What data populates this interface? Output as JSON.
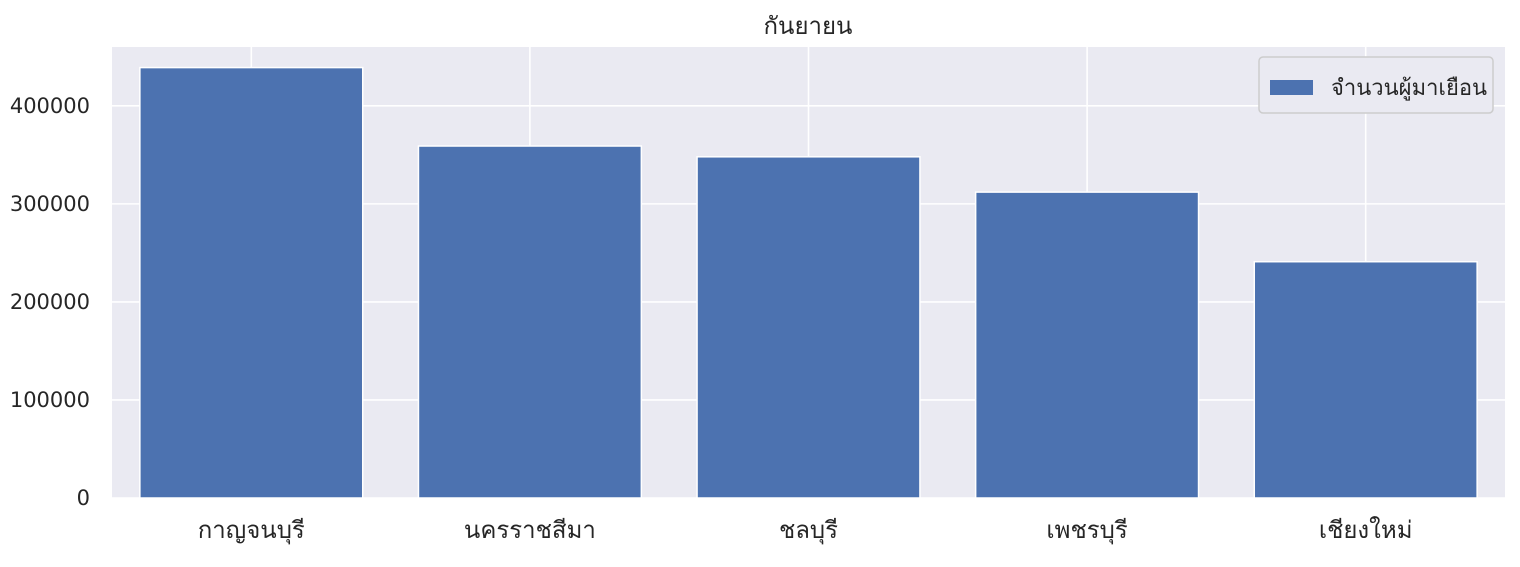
{
  "chart_data": {
    "type": "bar",
    "title": "กันยายน",
    "xlabel": "",
    "ylabel": "",
    "categories": [
      "กาญจนบุรี",
      "นครราชสีมา",
      "ชลบุรี",
      "เพชรบุรี",
      "เชียงใหม่"
    ],
    "series": [
      {
        "name": "จำนวนผู้มาเยือน",
        "values": [
          439000,
          359000,
          348000,
          312000,
          241000
        ]
      }
    ],
    "ylim": [
      0,
      460000
    ],
    "yticks": [
      "0",
      "100000",
      "200000",
      "300000",
      "400000"
    ],
    "grid": true,
    "legend_position": "top-right",
    "colors": {
      "bar": "#4c72b0",
      "plot_background": "#eaeaf2",
      "grid": "#ffffff",
      "text": "#262626"
    }
  }
}
